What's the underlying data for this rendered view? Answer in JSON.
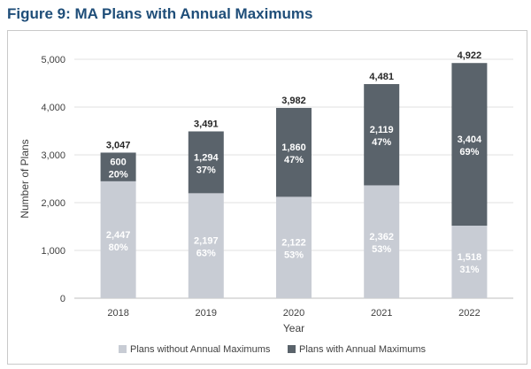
{
  "figure": {
    "title": "Figure 9: MA Plans with Annual Maximums"
  },
  "chart_data": {
    "type": "bar",
    "stacked": true,
    "categories": [
      "2018",
      "2019",
      "2020",
      "2021",
      "2022"
    ],
    "series": [
      {
        "name": "Plans without Annual Maximums",
        "color": "#c8ccd4",
        "values": [
          2447,
          2197,
          2122,
          2362,
          1518
        ],
        "value_labels": [
          "2,447",
          "2,197",
          "2,122",
          "2,362",
          "1,518"
        ],
        "percent_labels": [
          "80%",
          "63%",
          "53%",
          "53%",
          "31%"
        ]
      },
      {
        "name": "Plans with Annual Maximums",
        "color": "#5a636b",
        "values": [
          600,
          1294,
          1860,
          2119,
          3404
        ],
        "value_labels": [
          "600",
          "1,294",
          "1,860",
          "2,119",
          "3,404"
        ],
        "percent_labels": [
          "20%",
          "37%",
          "47%",
          "47%",
          "69%"
        ]
      }
    ],
    "totals": [
      3047,
      3491,
      3982,
      4481,
      4922
    ],
    "total_labels": [
      "3,047",
      "3,491",
      "3,982",
      "4,481",
      "4,922"
    ],
    "xlabel": "Year",
    "ylabel": "Number of Plans",
    "ylim": [
      0,
      5000
    ],
    "yticks": [
      0,
      1000,
      2000,
      3000,
      4000,
      5000
    ],
    "ytick_labels": [
      "0",
      "1,000",
      "2,000",
      "3,000",
      "4,000",
      "5,000"
    ],
    "grid": true,
    "legend": "bottom"
  }
}
